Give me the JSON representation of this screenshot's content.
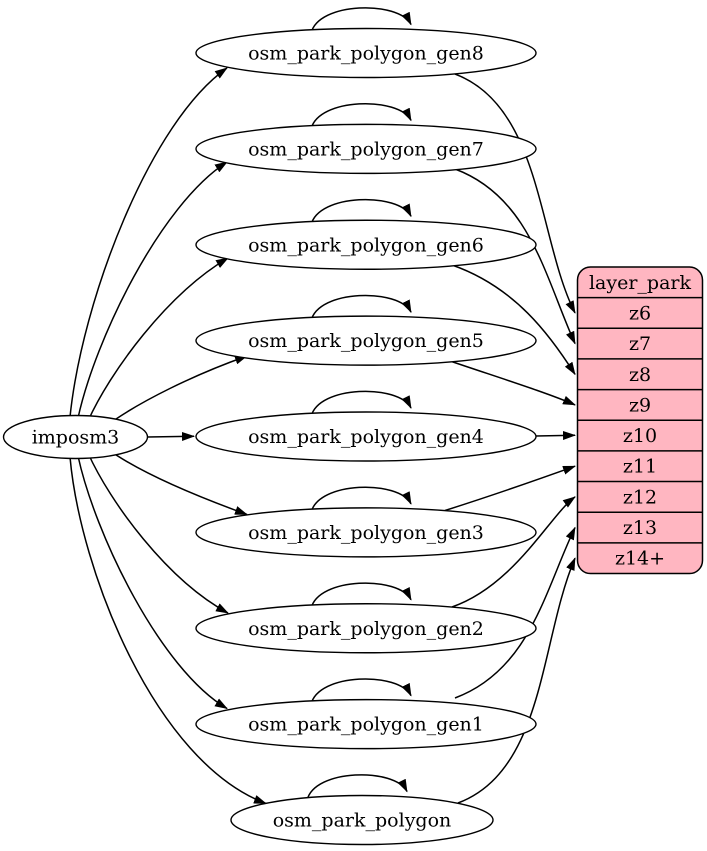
{
  "diagram": {
    "kind": "graphviz-digraph",
    "background": "#ffffff",
    "colors": {
      "node_fill": "#ffffff",
      "table_fill": "#ffb6c1",
      "stroke": "#000000",
      "text": "#000000"
    },
    "source_node": {
      "id": "imposm3",
      "label": "imposm3"
    },
    "generalization_nodes": [
      {
        "id": "osm_park_polygon_gen8",
        "label": "osm_park_polygon_gen8",
        "target_row": "z6"
      },
      {
        "id": "osm_park_polygon_gen7",
        "label": "osm_park_polygon_gen7",
        "target_row": "z7"
      },
      {
        "id": "osm_park_polygon_gen6",
        "label": "osm_park_polygon_gen6",
        "target_row": "z8"
      },
      {
        "id": "osm_park_polygon_gen5",
        "label": "osm_park_polygon_gen5",
        "target_row": "z9"
      },
      {
        "id": "osm_park_polygon_gen4",
        "label": "osm_park_polygon_gen4",
        "target_row": "z10"
      },
      {
        "id": "osm_park_polygon_gen3",
        "label": "osm_park_polygon_gen3",
        "target_row": "z11"
      },
      {
        "id": "osm_park_polygon_gen2",
        "label": "osm_park_polygon_gen2",
        "target_row": "z12"
      },
      {
        "id": "osm_park_polygon_gen1",
        "label": "osm_park_polygon_gen1",
        "target_row": "z13"
      },
      {
        "id": "osm_park_polygon",
        "label": "osm_park_polygon",
        "target_row": "z14+"
      }
    ],
    "layer_table": {
      "title": "layer_park",
      "rows": [
        "z6",
        "z7",
        "z8",
        "z9",
        "z10",
        "z11",
        "z12",
        "z13",
        "z14+"
      ]
    },
    "edges": [
      {
        "from": "imposm3",
        "to": "osm_park_polygon_gen8"
      },
      {
        "from": "imposm3",
        "to": "osm_park_polygon_gen7"
      },
      {
        "from": "imposm3",
        "to": "osm_park_polygon_gen6"
      },
      {
        "from": "imposm3",
        "to": "osm_park_polygon_gen5"
      },
      {
        "from": "imposm3",
        "to": "osm_park_polygon_gen4"
      },
      {
        "from": "imposm3",
        "to": "osm_park_polygon_gen3"
      },
      {
        "from": "imposm3",
        "to": "osm_park_polygon_gen2"
      },
      {
        "from": "imposm3",
        "to": "osm_park_polygon_gen1"
      },
      {
        "from": "imposm3",
        "to": "osm_park_polygon"
      },
      {
        "from": "osm_park_polygon_gen8",
        "to": "osm_park_polygon_gen8"
      },
      {
        "from": "osm_park_polygon_gen7",
        "to": "osm_park_polygon_gen7"
      },
      {
        "from": "osm_park_polygon_gen6",
        "to": "osm_park_polygon_gen6"
      },
      {
        "from": "osm_park_polygon_gen5",
        "to": "osm_park_polygon_gen5"
      },
      {
        "from": "osm_park_polygon_gen4",
        "to": "osm_park_polygon_gen4"
      },
      {
        "from": "osm_park_polygon_gen3",
        "to": "osm_park_polygon_gen3"
      },
      {
        "from": "osm_park_polygon_gen2",
        "to": "osm_park_polygon_gen2"
      },
      {
        "from": "osm_park_polygon_gen1",
        "to": "osm_park_polygon_gen1"
      },
      {
        "from": "osm_park_polygon",
        "to": "osm_park_polygon"
      },
      {
        "from": "osm_park_polygon_gen8",
        "to": "z6"
      },
      {
        "from": "osm_park_polygon_gen7",
        "to": "z7"
      },
      {
        "from": "osm_park_polygon_gen6",
        "to": "z8"
      },
      {
        "from": "osm_park_polygon_gen5",
        "to": "z9"
      },
      {
        "from": "osm_park_polygon_gen4",
        "to": "z10"
      },
      {
        "from": "osm_park_polygon_gen3",
        "to": "z11"
      },
      {
        "from": "osm_park_polygon_gen2",
        "to": "z12"
      },
      {
        "from": "osm_park_polygon_gen1",
        "to": "z13"
      },
      {
        "from": "osm_park_polygon",
        "to": "z14+"
      }
    ]
  }
}
